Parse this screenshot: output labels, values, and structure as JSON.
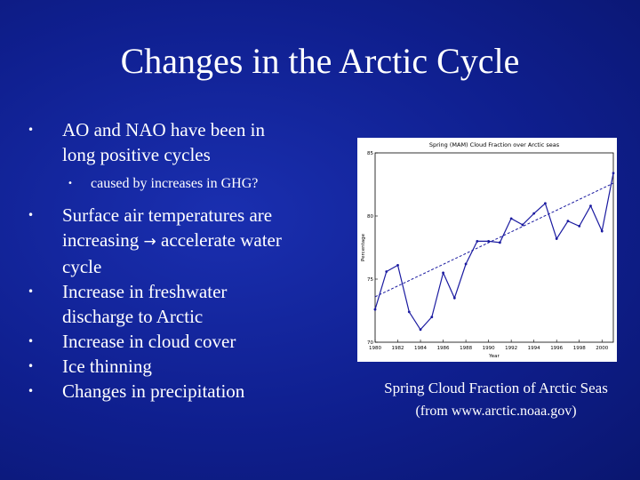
{
  "slide": {
    "title": "Changes in the Arctic Cycle",
    "bullets": [
      {
        "lines": [
          "AO and NAO have been in",
          "long positive cycles"
        ],
        "sub": "caused by increases in GHG?"
      },
      {
        "line1": "Surface air temperatures are",
        "line2a": "increasing",
        "arrow": "→",
        "line2b": "accelerate water",
        "line3": "cycle"
      },
      {
        "lines": [
          "Increase in freshwater",
          "discharge to Arctic"
        ]
      },
      {
        "lines": [
          "Increase in cloud cover"
        ]
      },
      {
        "lines": [
          "Ice thinning"
        ]
      },
      {
        "lines": [
          "Changes in precipitation"
        ]
      }
    ],
    "bullet_glyph": "•",
    "caption": "Spring Cloud Fraction of Arctic Seas",
    "source": "(from www.arctic.noaa.gov)"
  },
  "colors": {
    "background": "#0f1f8f",
    "text": "#ffffff",
    "series": "#1a1aa0"
  },
  "chart_data": {
    "type": "line",
    "title": "Spring (MAM) Cloud Fraction over Arctic seas",
    "xlabel": "Year",
    "ylabel": "Percentage",
    "xlim": [
      1980,
      2001
    ],
    "ylim": [
      70,
      85
    ],
    "xticks": [
      1980,
      1982,
      1984,
      1986,
      1988,
      1990,
      1992,
      1994,
      1996,
      1998,
      2000
    ],
    "yticks": [
      70,
      75,
      80,
      85
    ],
    "x": [
      1980,
      1981,
      1982,
      1983,
      1984,
      1985,
      1986,
      1987,
      1988,
      1989,
      1990,
      1991,
      1992,
      1993,
      1994,
      1995,
      1996,
      1997,
      1998,
      1999,
      2000,
      2001
    ],
    "values": [
      72.6,
      75.6,
      76.1,
      72.4,
      71.0,
      72.0,
      75.5,
      73.5,
      76.2,
      78.0,
      78.0,
      77.9,
      79.8,
      79.3,
      80.2,
      81.0,
      78.2,
      79.6,
      79.2,
      80.8,
      78.8,
      83.4
    ],
    "trend": {
      "start": [
        1980,
        73.6
      ],
      "end": [
        2001,
        82.6
      ]
    },
    "grid": false,
    "legend": "none"
  }
}
